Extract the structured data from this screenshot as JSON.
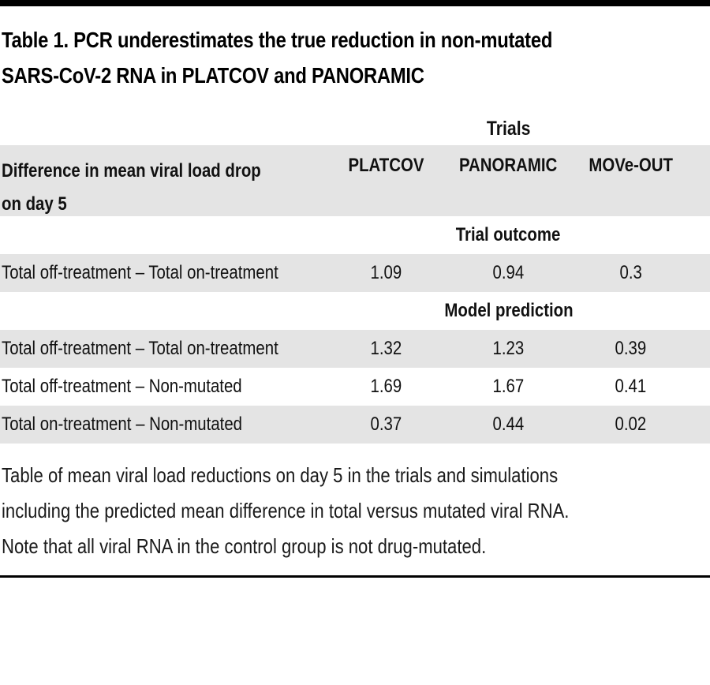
{
  "title_lines": [
    "Table 1. PCR underestimates the true reduction in non-mutated",
    "SARS-CoV-2 RNA in PLATCOV and PANORAMIC"
  ],
  "table": {
    "group_header": "Trials",
    "row_header": {
      "label_lines": [
        "Difference in mean viral load drop",
        "on day 5"
      ],
      "columns": [
        "PLATCOV",
        "PANORAMIC",
        "MOVe-OUT"
      ]
    },
    "sections": [
      {
        "header": "Trial outcome",
        "rows": [
          {
            "label": "Total off-treatment – Total on-treatment",
            "values": [
              "1.09",
              "0.94",
              "0.3"
            ]
          }
        ]
      },
      {
        "header": "Model prediction",
        "rows": [
          {
            "label": "Total off-treatment – Total on-treatment",
            "values": [
              "1.32",
              "1.23",
              "0.39"
            ]
          },
          {
            "label": "Total off-treatment – Non-mutated",
            "values": [
              "1.69",
              "1.67",
              "0.41"
            ]
          },
          {
            "label": "Total on-treatment – Non-mutated",
            "values": [
              "0.37",
              "0.44",
              "0.02"
            ]
          }
        ]
      }
    ]
  },
  "caption_lines": [
    "Table of mean viral load reductions on day 5 in the trials and simulations",
    "including the predicted mean difference in total versus mutated viral RNA.",
    "Note that all viral RNA in the control group is not drug-mutated."
  ],
  "colors": {
    "stripe": "#e4e4e4",
    "rule": "#000000",
    "text": "#111111"
  }
}
